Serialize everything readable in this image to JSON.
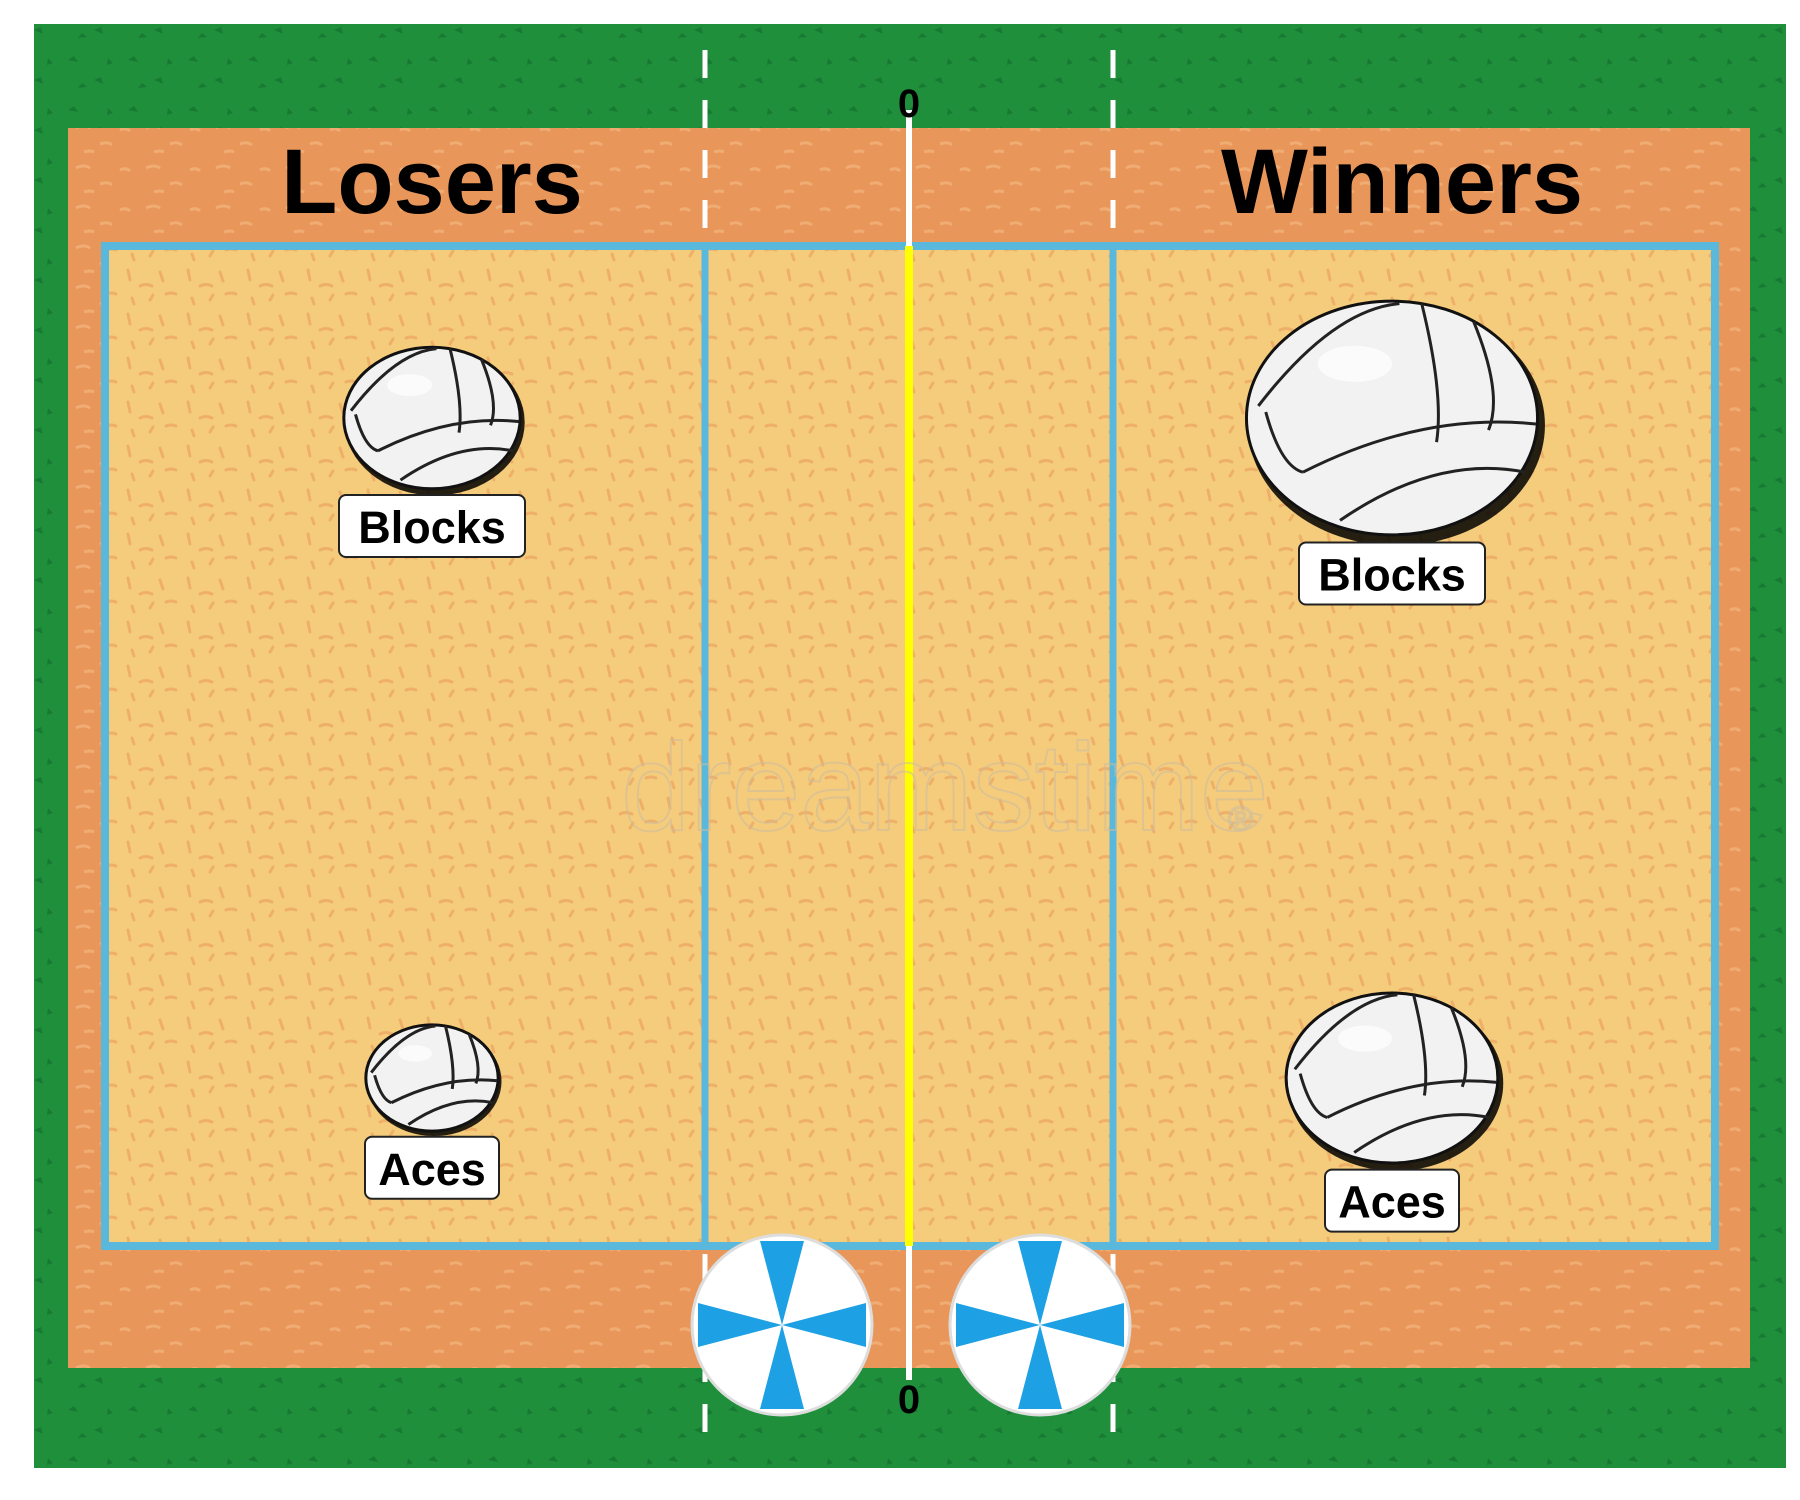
{
  "colors": {
    "grass": "#1f8f3c",
    "grass_dark": "#177a32",
    "outer_sand": "#e9965a",
    "inner_sand": "#f5cc7c",
    "court_line": "#5ab8dc",
    "net": "#ffff00",
    "ball_fill": "#f2f2f2",
    "umbrella_blue": "#1ea1e4"
  },
  "net_marks": {
    "top": "0",
    "bottom": "0"
  },
  "watermark": {
    "text": "dreamstime",
    "registered": "®"
  },
  "chart_data": {
    "type": "pictograph",
    "categories": [
      "Blocks",
      "Aces"
    ],
    "series": [
      {
        "name": "Losers",
        "values": [
          1.0,
          0.75
        ]
      },
      {
        "name": "Winners",
        "values": [
          1.65,
          1.2
        ]
      }
    ],
    "value_encoding": "relative ball size",
    "legend": "none",
    "grid": false
  }
}
